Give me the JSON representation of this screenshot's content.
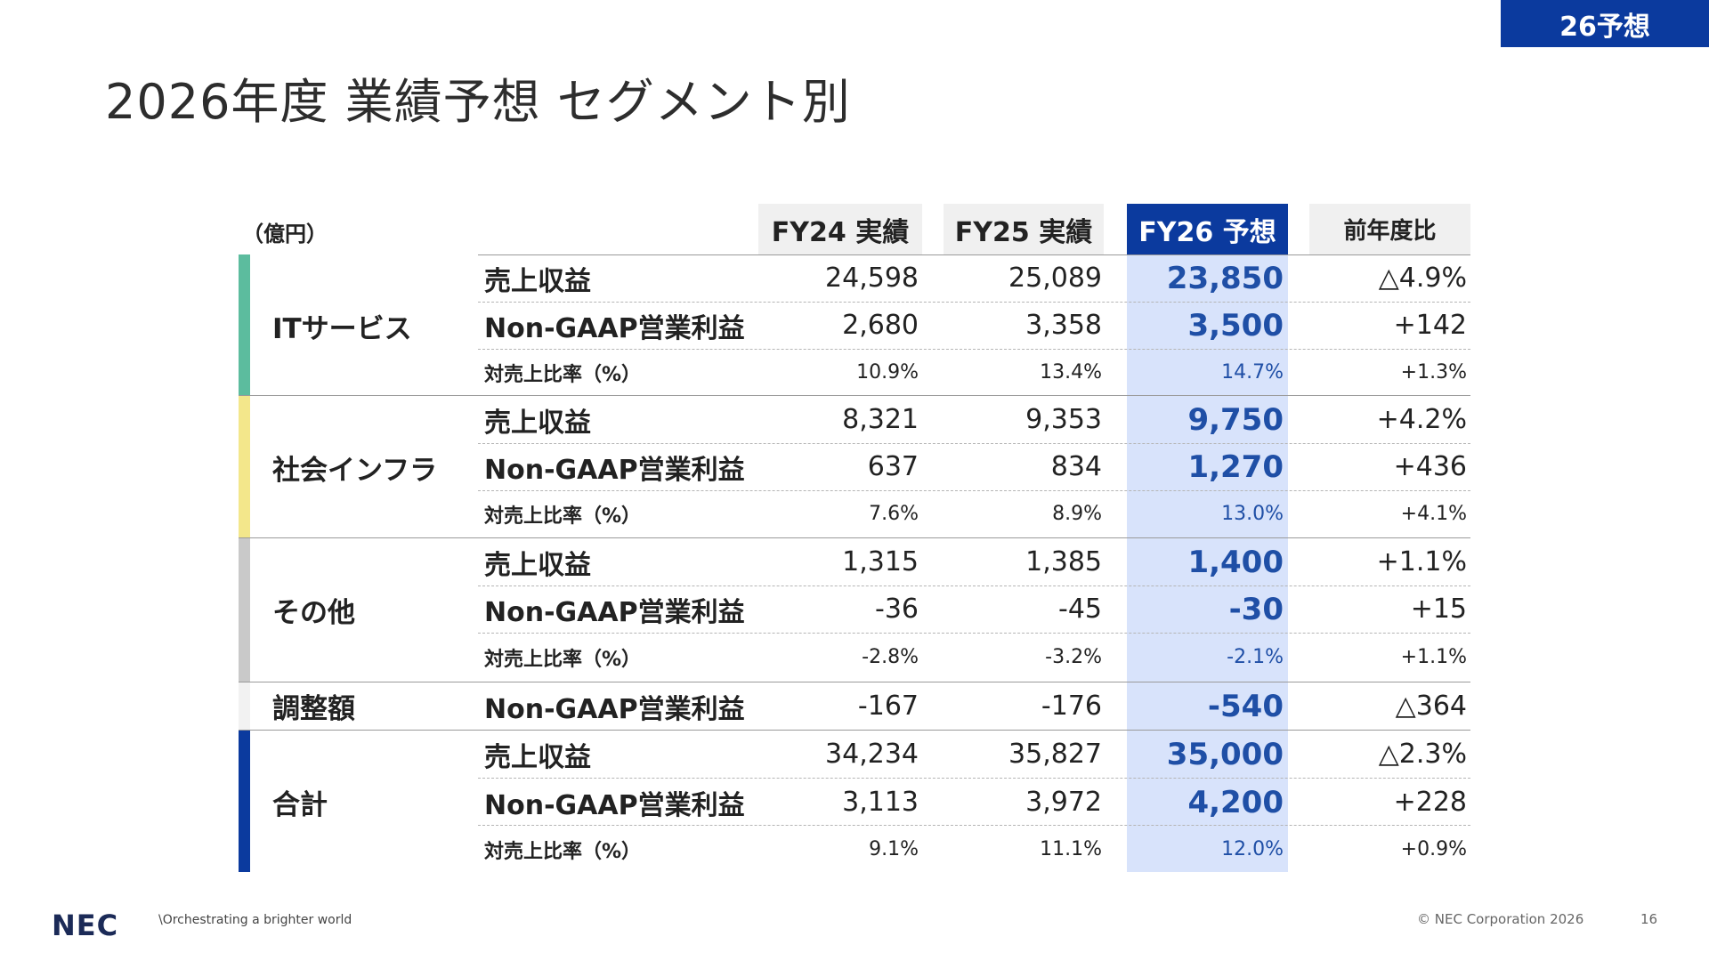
{
  "tag": "26予想",
  "title": "2026年度 業績予想 セグメント別",
  "unit": "（億円）",
  "headers": [
    "FY24 実績",
    "FY25 実績",
    "FY26 予想",
    "前年度比"
  ],
  "segments": [
    {
      "name": "ITサービス",
      "bar_color": "#5cbc9e"
    },
    {
      "name": "社会インフラ",
      "bar_color": "#f3e78b"
    },
    {
      "name": "その他",
      "bar_color": "#c9c9c9"
    },
    {
      "name": "調整額",
      "bar_color": "#f2f2f2"
    },
    {
      "name": "合計",
      "bar_color": "#0b3a9e"
    }
  ],
  "rows": [
    {
      "label": "売上収益",
      "values": [
        "24,598",
        "25,089",
        "23,850",
        "△4.9%"
      ]
    },
    {
      "label": "Non-GAAP営業利益",
      "values": [
        "2,680",
        "3,358",
        "3,500",
        "+142"
      ]
    },
    {
      "label": "対売上比率（%）",
      "values": [
        "10.9%",
        "13.4%",
        "14.7%",
        "+1.3%"
      ]
    },
    {
      "label": "売上収益",
      "values": [
        "8,321",
        "9,353",
        "9,750",
        "+4.2%"
      ]
    },
    {
      "label": "Non-GAAP営業利益",
      "values": [
        "637",
        "834",
        "1,270",
        "+436"
      ]
    },
    {
      "label": "対売上比率（%）",
      "values": [
        "7.6%",
        "8.9%",
        "13.0%",
        "+4.1%"
      ]
    },
    {
      "label": "売上収益",
      "values": [
        "1,315",
        "1,385",
        "1,400",
        "+1.1%"
      ]
    },
    {
      "label": "Non-GAAP営業利益",
      "values": [
        "-36",
        "-45",
        "-30",
        "+15"
      ]
    },
    {
      "label": "対売上比率（%）",
      "values": [
        "-2.8%",
        "-3.2%",
        "-2.1%",
        "+1.1%"
      ]
    },
    {
      "label": "Non-GAAP営業利益",
      "values": [
        "-167",
        "-176",
        "-540",
        "△364"
      ]
    },
    {
      "label": "売上収益",
      "values": [
        "34,234",
        "35,827",
        "35,000",
        "△2.3%"
      ]
    },
    {
      "label": "Non-GAAP営業利益",
      "values": [
        "3,113",
        "3,972",
        "4,200",
        "+228"
      ]
    },
    {
      "label": "対売上比率（%）",
      "values": [
        "9.1%",
        "11.1%",
        "12.0%",
        "+0.9%"
      ]
    }
  ],
  "footer": {
    "logo": "NEC",
    "tagline": "\\Orchestrating a brighter world",
    "copyright": "© NEC Corporation 2026",
    "page": "16"
  }
}
